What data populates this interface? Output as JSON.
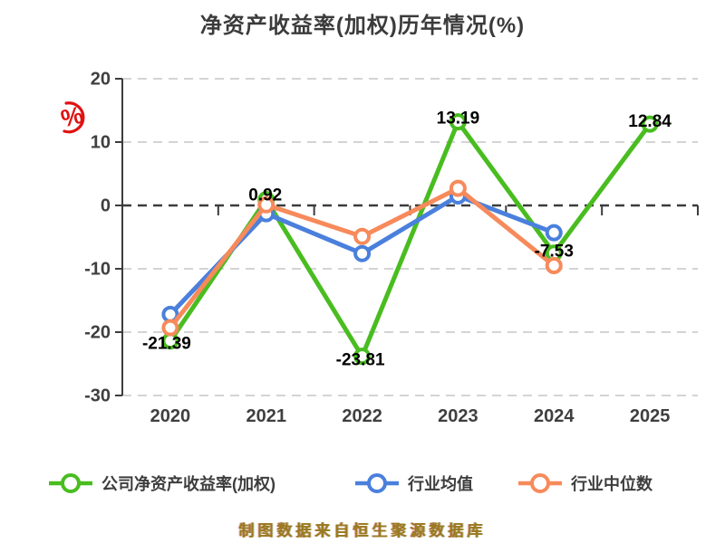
{
  "title": "净资产收益率(加权)历年情况(%)",
  "watermark": {
    "text": "制图数据来自恒生聚源数据库",
    "logo": "red-percent-emblem",
    "logo_color": "#e01212",
    "text_color": "#9a7a1f"
  },
  "colors": {
    "company": "#49bd20",
    "industry_mean": "#4a80dc",
    "industry_median": "#f78a5b",
    "axis": "#3c3c3c",
    "grid": "#d4d4d4",
    "axis_label": "#3f3f3f",
    "data_label": "#000000",
    "title": "#3b3b3b"
  },
  "chart_data": {
    "type": "line",
    "title": "净资产收益率(加权)历年情况(%)",
    "categories": [
      "2020",
      "2021",
      "2022",
      "2023",
      "2024",
      "2025"
    ],
    "xlabel": "",
    "ylabel": "%",
    "ylim": [
      -30,
      20
    ],
    "yticks": [
      20,
      10,
      0,
      -10,
      -20,
      -30
    ],
    "grid": "horizontal-dashed",
    "legend_position": "bottom",
    "series": [
      {
        "name": "公司净资产收益率(加权)",
        "color": "#49bd20",
        "marker": "circle",
        "values": [
          -21.39,
          0.92,
          -23.81,
          13.19,
          -7.53,
          12.84
        ],
        "data_labels": [
          "-21.39",
          "0.92",
          "-23.81",
          "13.19",
          "-7.53",
          "12.84"
        ]
      },
      {
        "name": "行业均值",
        "color": "#4a80dc",
        "marker": "circle",
        "values": [
          -17.2,
          -1.3,
          -7.6,
          1.5,
          -4.3,
          null
        ],
        "data_labels": null
      },
      {
        "name": "行业中位数",
        "color": "#f78a5b",
        "marker": "circle",
        "values": [
          -19.3,
          0.1,
          -4.9,
          2.7,
          -9.5,
          null
        ],
        "data_labels": null
      }
    ]
  }
}
